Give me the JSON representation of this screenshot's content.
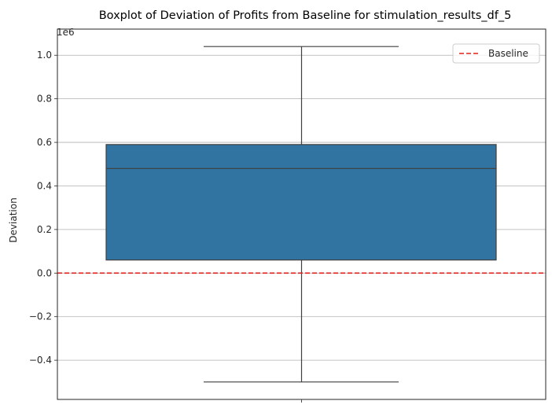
{
  "chart_data": {
    "type": "box",
    "title": "Boxplot of Deviation of Profits from Baseline for stimulation_results_df_5",
    "xlabel": "",
    "ylabel": "Deviation",
    "y_offset_label": "1e6",
    "ylim": [
      -0.58,
      1.12
    ],
    "yticks": [
      -0.4,
      -0.2,
      0.0,
      0.2,
      0.4,
      0.6,
      0.8,
      1.0
    ],
    "ytick_labels": [
      "−0.4",
      "−0.2",
      "0.0",
      "0.2",
      "0.4",
      "0.6",
      "0.8",
      "1.0"
    ],
    "grid": "horizontal",
    "box": {
      "whisker_low": -0.5,
      "q1": 0.06,
      "median": 0.48,
      "q3": 0.59,
      "whisker_high": 1.04,
      "color": "#3274a1",
      "edge_color": "#3f3f3f"
    },
    "baseline": {
      "value": 0.0,
      "color": "#e3211c",
      "style": "dashed",
      "label": "Baseline"
    },
    "legend": {
      "position": "top-right",
      "entries": [
        "Baseline"
      ]
    }
  }
}
